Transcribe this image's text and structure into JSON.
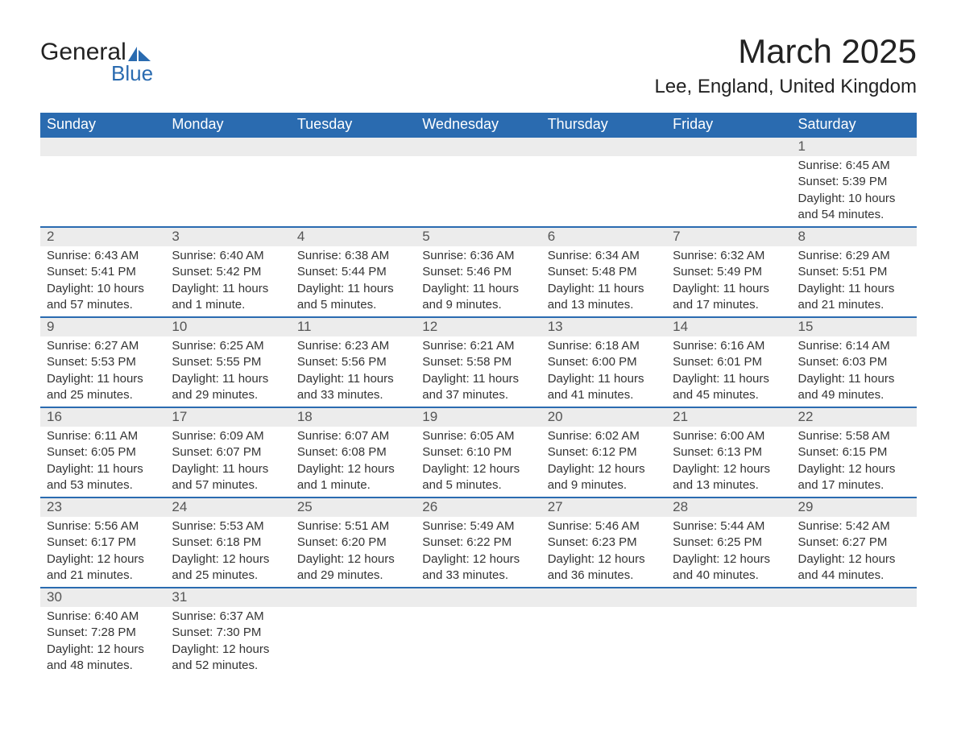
{
  "logo": {
    "word1": "General",
    "word2": "Blue",
    "shape_color": "#2a6bb0"
  },
  "header": {
    "month_title": "March 2025",
    "location": "Lee, England, United Kingdom"
  },
  "style": {
    "header_bg": "#2a6bb0",
    "header_fg": "#ffffff",
    "row_separator": "#2a6bb0",
    "daynum_bg": "#ececec",
    "text_color": "#333333",
    "font_family": "Arial",
    "title_fontsize_pt": 32,
    "location_fontsize_pt": 18,
    "weekday_fontsize_pt": 14,
    "cell_fontsize_pt": 11
  },
  "calendar": {
    "type": "table",
    "columns": [
      "Sunday",
      "Monday",
      "Tuesday",
      "Wednesday",
      "Thursday",
      "Friday",
      "Saturday"
    ],
    "weeks": [
      [
        null,
        null,
        null,
        null,
        null,
        null,
        {
          "n": "1",
          "sunrise": "Sunrise: 6:45 AM",
          "sunset": "Sunset: 5:39 PM",
          "daylight": "Daylight: 10 hours and 54 minutes."
        }
      ],
      [
        {
          "n": "2",
          "sunrise": "Sunrise: 6:43 AM",
          "sunset": "Sunset: 5:41 PM",
          "daylight": "Daylight: 10 hours and 57 minutes."
        },
        {
          "n": "3",
          "sunrise": "Sunrise: 6:40 AM",
          "sunset": "Sunset: 5:42 PM",
          "daylight": "Daylight: 11 hours and 1 minute."
        },
        {
          "n": "4",
          "sunrise": "Sunrise: 6:38 AM",
          "sunset": "Sunset: 5:44 PM",
          "daylight": "Daylight: 11 hours and 5 minutes."
        },
        {
          "n": "5",
          "sunrise": "Sunrise: 6:36 AM",
          "sunset": "Sunset: 5:46 PM",
          "daylight": "Daylight: 11 hours and 9 minutes."
        },
        {
          "n": "6",
          "sunrise": "Sunrise: 6:34 AM",
          "sunset": "Sunset: 5:48 PM",
          "daylight": "Daylight: 11 hours and 13 minutes."
        },
        {
          "n": "7",
          "sunrise": "Sunrise: 6:32 AM",
          "sunset": "Sunset: 5:49 PM",
          "daylight": "Daylight: 11 hours and 17 minutes."
        },
        {
          "n": "8",
          "sunrise": "Sunrise: 6:29 AM",
          "sunset": "Sunset: 5:51 PM",
          "daylight": "Daylight: 11 hours and 21 minutes."
        }
      ],
      [
        {
          "n": "9",
          "sunrise": "Sunrise: 6:27 AM",
          "sunset": "Sunset: 5:53 PM",
          "daylight": "Daylight: 11 hours and 25 minutes."
        },
        {
          "n": "10",
          "sunrise": "Sunrise: 6:25 AM",
          "sunset": "Sunset: 5:55 PM",
          "daylight": "Daylight: 11 hours and 29 minutes."
        },
        {
          "n": "11",
          "sunrise": "Sunrise: 6:23 AM",
          "sunset": "Sunset: 5:56 PM",
          "daylight": "Daylight: 11 hours and 33 minutes."
        },
        {
          "n": "12",
          "sunrise": "Sunrise: 6:21 AM",
          "sunset": "Sunset: 5:58 PM",
          "daylight": "Daylight: 11 hours and 37 minutes."
        },
        {
          "n": "13",
          "sunrise": "Sunrise: 6:18 AM",
          "sunset": "Sunset: 6:00 PM",
          "daylight": "Daylight: 11 hours and 41 minutes."
        },
        {
          "n": "14",
          "sunrise": "Sunrise: 6:16 AM",
          "sunset": "Sunset: 6:01 PM",
          "daylight": "Daylight: 11 hours and 45 minutes."
        },
        {
          "n": "15",
          "sunrise": "Sunrise: 6:14 AM",
          "sunset": "Sunset: 6:03 PM",
          "daylight": "Daylight: 11 hours and 49 minutes."
        }
      ],
      [
        {
          "n": "16",
          "sunrise": "Sunrise: 6:11 AM",
          "sunset": "Sunset: 6:05 PM",
          "daylight": "Daylight: 11 hours and 53 minutes."
        },
        {
          "n": "17",
          "sunrise": "Sunrise: 6:09 AM",
          "sunset": "Sunset: 6:07 PM",
          "daylight": "Daylight: 11 hours and 57 minutes."
        },
        {
          "n": "18",
          "sunrise": "Sunrise: 6:07 AM",
          "sunset": "Sunset: 6:08 PM",
          "daylight": "Daylight: 12 hours and 1 minute."
        },
        {
          "n": "19",
          "sunrise": "Sunrise: 6:05 AM",
          "sunset": "Sunset: 6:10 PM",
          "daylight": "Daylight: 12 hours and 5 minutes."
        },
        {
          "n": "20",
          "sunrise": "Sunrise: 6:02 AM",
          "sunset": "Sunset: 6:12 PM",
          "daylight": "Daylight: 12 hours and 9 minutes."
        },
        {
          "n": "21",
          "sunrise": "Sunrise: 6:00 AM",
          "sunset": "Sunset: 6:13 PM",
          "daylight": "Daylight: 12 hours and 13 minutes."
        },
        {
          "n": "22",
          "sunrise": "Sunrise: 5:58 AM",
          "sunset": "Sunset: 6:15 PM",
          "daylight": "Daylight: 12 hours and 17 minutes."
        }
      ],
      [
        {
          "n": "23",
          "sunrise": "Sunrise: 5:56 AM",
          "sunset": "Sunset: 6:17 PM",
          "daylight": "Daylight: 12 hours and 21 minutes."
        },
        {
          "n": "24",
          "sunrise": "Sunrise: 5:53 AM",
          "sunset": "Sunset: 6:18 PM",
          "daylight": "Daylight: 12 hours and 25 minutes."
        },
        {
          "n": "25",
          "sunrise": "Sunrise: 5:51 AM",
          "sunset": "Sunset: 6:20 PM",
          "daylight": "Daylight: 12 hours and 29 minutes."
        },
        {
          "n": "26",
          "sunrise": "Sunrise: 5:49 AM",
          "sunset": "Sunset: 6:22 PM",
          "daylight": "Daylight: 12 hours and 33 minutes."
        },
        {
          "n": "27",
          "sunrise": "Sunrise: 5:46 AM",
          "sunset": "Sunset: 6:23 PM",
          "daylight": "Daylight: 12 hours and 36 minutes."
        },
        {
          "n": "28",
          "sunrise": "Sunrise: 5:44 AM",
          "sunset": "Sunset: 6:25 PM",
          "daylight": "Daylight: 12 hours and 40 minutes."
        },
        {
          "n": "29",
          "sunrise": "Sunrise: 5:42 AM",
          "sunset": "Sunset: 6:27 PM",
          "daylight": "Daylight: 12 hours and 44 minutes."
        }
      ],
      [
        {
          "n": "30",
          "sunrise": "Sunrise: 6:40 AM",
          "sunset": "Sunset: 7:28 PM",
          "daylight": "Daylight: 12 hours and 48 minutes."
        },
        {
          "n": "31",
          "sunrise": "Sunrise: 6:37 AM",
          "sunset": "Sunset: 7:30 PM",
          "daylight": "Daylight: 12 hours and 52 minutes."
        },
        null,
        null,
        null,
        null,
        null
      ]
    ]
  }
}
